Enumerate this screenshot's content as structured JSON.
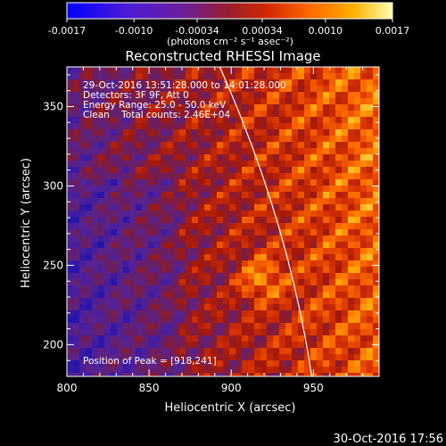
{
  "colorbar": {
    "ticks": [
      "-0.0017",
      "-0.0010",
      "-0.00034",
      "0.00034",
      "0.0010",
      "0.0017"
    ],
    "range": [
      -0.0017,
      0.0017
    ],
    "units": "(photons cm⁻² s⁻¹ asec⁻²)"
  },
  "chart_data": {
    "type": "heatmap",
    "title": "Reconstructed RHESSI Image",
    "xlabel": "Heliocentric X (arcsec)",
    "ylabel": "Heliocentric Y (arcsec)",
    "xlim": [
      800,
      990
    ],
    "ylim": [
      180,
      375
    ],
    "x_ticks": [
      800,
      850,
      900,
      950
    ],
    "y_ticks": [
      200,
      250,
      300,
      350
    ],
    "peak": [
      918,
      241
    ],
    "limb_arc": {
      "x_top": 893,
      "x_bottom": 949
    },
    "info_lines": [
      "29-Oct-2016 13:51:28.000 to 14:01:28.000",
      "Detectors: 3F 9F, Att 0",
      "Energy Range: 25.0 - 50.0 keV",
      "Clean    Total counts: 2.46E+04"
    ],
    "peak_label": "Position of Peak = [918,241]"
  },
  "footer": {
    "timestamp": "30-Oct-2016 17:56"
  }
}
